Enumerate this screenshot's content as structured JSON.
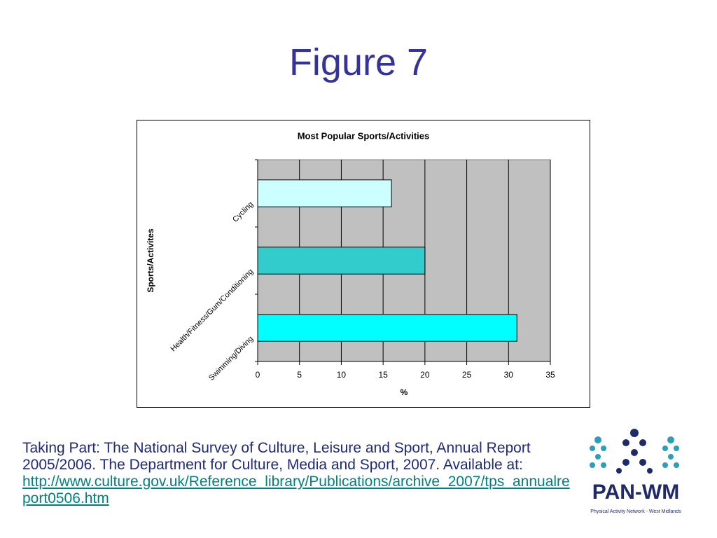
{
  "slide_title": "Figure 7",
  "chart_data": {
    "type": "hbar",
    "title": "Most Popular Sports/Activities",
    "x_label": "%",
    "y_label": "Sports/Activites",
    "categories": [
      "Cycling",
      "Health/Fitness/Gum/Conditioning",
      "Swimming/Diving"
    ],
    "values": [
      16,
      20,
      31
    ],
    "colors": [
      "#ccffff",
      "#33cccc",
      "#00ffff"
    ],
    "xlim": [
      0,
      35
    ],
    "xticks": [
      0,
      5,
      10,
      15,
      20,
      25,
      30,
      35
    ],
    "grid": true
  },
  "caption": {
    "text": "Taking Part: The National Survey of Culture, Leisure and Sport, Annual Report 2005/2006. The Department for Culture, Media and Sport, 2007. Available at:",
    "link": "http://www.culture.gov.uk/Reference_library/Publications/archive_2007/tps_annualreport0506.htm"
  },
  "logo": {
    "name": "PAN-WM",
    "subtitle": "Physical Activity Network - West Midlands"
  }
}
